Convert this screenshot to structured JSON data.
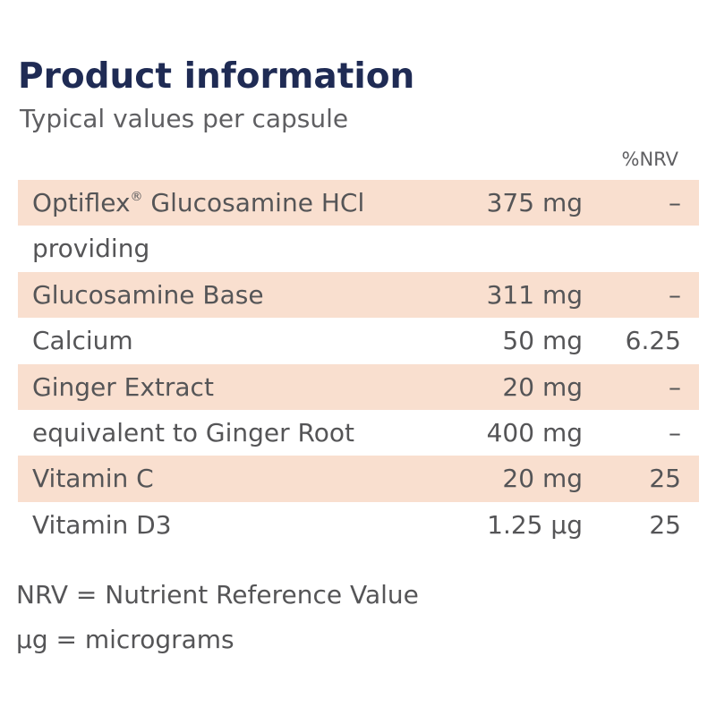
{
  "title": "Product information",
  "subtitle": "Typical values per capsule",
  "nrv_header": "%NRV",
  "rows": [
    {
      "name": "Optiflex",
      "name_mark": "®",
      "name_suffix": " Glucosamine HCl",
      "amount": "375 mg",
      "nrv": "–",
      "shaded": true
    },
    {
      "name": "providing",
      "amount": "",
      "nrv": "",
      "shaded": false
    },
    {
      "name": "Glucosamine Base",
      "amount": "311 mg",
      "nrv": "–",
      "shaded": true
    },
    {
      "name": "Calcium",
      "amount": "50 mg",
      "nrv": "6.25",
      "shaded": false
    },
    {
      "name": "Ginger Extract",
      "amount": "20 mg",
      "nrv": "–",
      "shaded": true
    },
    {
      "name": "equivalent to Ginger Root",
      "amount": "400 mg",
      "nrv": "–",
      "shaded": false
    },
    {
      "name": "Vitamin C",
      "amount": "20 mg",
      "nrv": "25",
      "shaded": true
    },
    {
      "name": "Vitamin D3",
      "amount": "1.25 µg",
      "nrv": "25",
      "shaded": false
    }
  ],
  "footnotes": [
    "NRV = Nutrient Reference Value",
    "µg = micrograms"
  ],
  "colors": {
    "title": "#1f2b54",
    "text": "#555557",
    "row_shade": "#f9dfcf"
  }
}
